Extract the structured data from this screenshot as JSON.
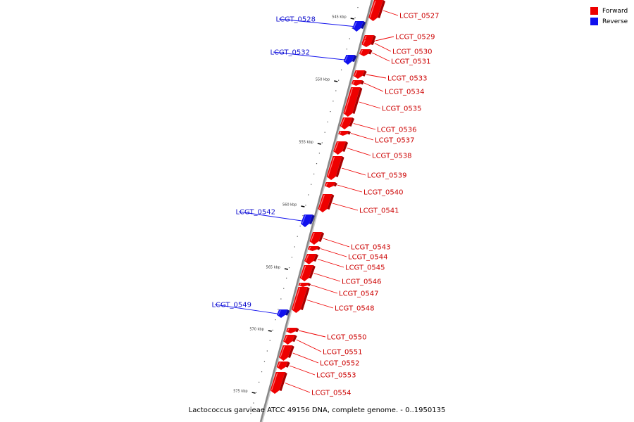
{
  "colors": {
    "forward": "#ee0000",
    "reverse": "#1111ee",
    "backbone": "#888888"
  },
  "legend": [
    {
      "label": "Forward",
      "color": "#ee0000"
    },
    {
      "label": "Reverse",
      "color": "#1111ee"
    }
  ],
  "caption": "Lactococcus garvieae ATCC 49156 DNA, complete genome. - 0..1950135",
  "ticks": [
    {
      "label": "545 kbp"
    },
    {
      "label": "550 kbp"
    },
    {
      "label": "555 kbp"
    },
    {
      "label": "560 kbp"
    },
    {
      "label": "565 kbp"
    },
    {
      "label": "570 kbp"
    },
    {
      "label": "575 kbp"
    }
  ],
  "genes": [
    {
      "name": "LCGT_0527",
      "strand": "forward"
    },
    {
      "name": "LCGT_0528",
      "strand": "reverse"
    },
    {
      "name": "LCGT_0529",
      "strand": "forward"
    },
    {
      "name": "LCGT_0530",
      "strand": "forward"
    },
    {
      "name": "LCGT_0531",
      "strand": "forward"
    },
    {
      "name": "LCGT_0532",
      "strand": "reverse"
    },
    {
      "name": "LCGT_0533",
      "strand": "forward"
    },
    {
      "name": "LCGT_0534",
      "strand": "forward"
    },
    {
      "name": "LCGT_0535",
      "strand": "forward"
    },
    {
      "name": "LCGT_0536",
      "strand": "forward"
    },
    {
      "name": "LCGT_0537",
      "strand": "forward"
    },
    {
      "name": "LCGT_0538",
      "strand": "forward"
    },
    {
      "name": "LCGT_0539",
      "strand": "forward"
    },
    {
      "name": "LCGT_0540",
      "strand": "forward"
    },
    {
      "name": "LCGT_0541",
      "strand": "forward"
    },
    {
      "name": "LCGT_0542",
      "strand": "reverse"
    },
    {
      "name": "LCGT_0543",
      "strand": "forward"
    },
    {
      "name": "LCGT_0544",
      "strand": "forward"
    },
    {
      "name": "LCGT_0545",
      "strand": "forward"
    },
    {
      "name": "LCGT_0546",
      "strand": "forward"
    },
    {
      "name": "LCGT_0547",
      "strand": "forward"
    },
    {
      "name": "LCGT_0548",
      "strand": "forward"
    },
    {
      "name": "LCGT_0549",
      "strand": "reverse"
    },
    {
      "name": "LCGT_0550",
      "strand": "forward"
    },
    {
      "name": "LCGT_0551",
      "strand": "forward"
    },
    {
      "name": "LCGT_0552",
      "strand": "forward"
    },
    {
      "name": "LCGT_0553",
      "strand": "forward"
    },
    {
      "name": "LCGT_0554",
      "strand": "forward"
    }
  ]
}
